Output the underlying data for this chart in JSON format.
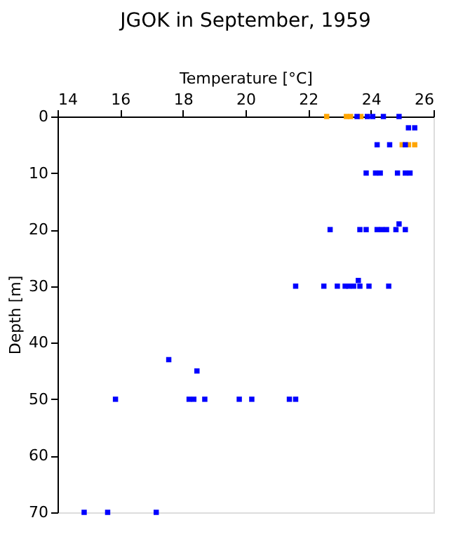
{
  "chart_data": {
    "type": "scatter",
    "title": "JGOK in September, 1959",
    "xlabel": "Temperature [°C]",
    "ylabel": "Depth [m]",
    "xlim": [
      14,
      26
    ],
    "xticks": [
      14,
      16,
      18,
      20,
      22,
      24,
      26
    ],
    "ylim": [
      70,
      0
    ],
    "yticks": [
      0,
      10,
      20,
      30,
      40,
      50,
      60,
      70
    ],
    "grid": false,
    "legend": false,
    "marker": "square",
    "series": [
      {
        "color": "#0000ff",
        "x": [
          23.56,
          23.89,
          24.06,
          24.4,
          24.9,
          25.2,
          25.4,
          24.2,
          24.6,
          25.1,
          23.85,
          24.15,
          24.3,
          24.85,
          25.1,
          25.25,
          22.7,
          23.65,
          23.85,
          24.2,
          24.35,
          24.5,
          24.8,
          25.1,
          24.9,
          21.6,
          22.5,
          22.93,
          23.18,
          23.3,
          23.45,
          23.65,
          23.94,
          24.57,
          23.6,
          15.85,
          18.2,
          18.35,
          18.7,
          19.8,
          20.2,
          21.4,
          21.6,
          17.55,
          18.45,
          14.85,
          15.6,
          17.15
        ],
        "values": [
          0,
          0,
          0,
          0,
          0,
          2,
          2,
          5,
          5,
          5,
          10,
          10,
          10,
          10,
          10,
          10,
          20,
          20,
          20,
          20,
          20,
          20,
          20,
          20,
          19,
          30,
          30,
          30,
          30,
          30,
          30,
          30,
          30,
          30,
          29,
          50,
          50,
          50,
          50,
          50,
          50,
          50,
          50,
          43,
          45,
          70,
          70,
          70
        ]
      },
      {
        "color": "#ffa500",
        "x": [
          22.59,
          23.22,
          23.35,
          23.68,
          25.0,
          25.2,
          25.4
        ],
        "values": [
          0,
          0,
          0,
          0,
          5,
          5,
          5
        ]
      }
    ]
  }
}
